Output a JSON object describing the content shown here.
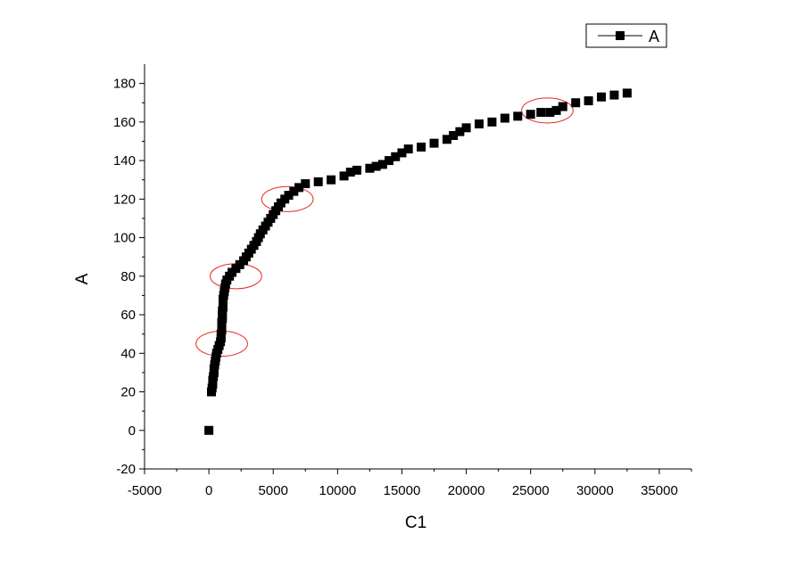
{
  "chart_data": {
    "type": "scatter",
    "title": "",
    "xlabel": "C1",
    "ylabel": "A",
    "xlim": [
      -5000,
      37500
    ],
    "ylim": [
      -20,
      190
    ],
    "xticks": [
      -5000,
      0,
      5000,
      10000,
      15000,
      20000,
      25000,
      30000,
      35000
    ],
    "yticks": [
      -20,
      0,
      20,
      40,
      60,
      80,
      100,
      120,
      140,
      160,
      180
    ],
    "grid": false,
    "legend": {
      "position": "top-right",
      "entries": [
        "A"
      ]
    },
    "marker_color": "#000000",
    "annotation_color": "#e8281e",
    "series": [
      {
        "name": "A",
        "points": [
          [
            0,
            0
          ],
          [
            200,
            20
          ],
          [
            250,
            22
          ],
          [
            300,
            24
          ],
          [
            300,
            26
          ],
          [
            350,
            28
          ],
          [
            400,
            30
          ],
          [
            400,
            32
          ],
          [
            450,
            34
          ],
          [
            500,
            36
          ],
          [
            550,
            38
          ],
          [
            600,
            40
          ],
          [
            700,
            42
          ],
          [
            800,
            44
          ],
          [
            900,
            46
          ],
          [
            950,
            48
          ],
          [
            950,
            50
          ],
          [
            1000,
            52
          ],
          [
            1000,
            54
          ],
          [
            1000,
            56
          ],
          [
            1050,
            58
          ],
          [
            1050,
            60
          ],
          [
            1050,
            62
          ],
          [
            1100,
            64
          ],
          [
            1100,
            66
          ],
          [
            1100,
            68
          ],
          [
            1150,
            70
          ],
          [
            1200,
            72
          ],
          [
            1250,
            74
          ],
          [
            1300,
            76
          ],
          [
            1400,
            78
          ],
          [
            1600,
            80
          ],
          [
            1800,
            82
          ],
          [
            2100,
            84
          ],
          [
            2400,
            86
          ],
          [
            2700,
            88
          ],
          [
            2900,
            90
          ],
          [
            3100,
            92
          ],
          [
            3300,
            94
          ],
          [
            3500,
            96
          ],
          [
            3700,
            98
          ],
          [
            3850,
            100
          ],
          [
            4000,
            102
          ],
          [
            4200,
            104
          ],
          [
            4400,
            106
          ],
          [
            4600,
            108
          ],
          [
            4800,
            110
          ],
          [
            5000,
            112
          ],
          [
            5200,
            114
          ],
          [
            5400,
            116
          ],
          [
            5600,
            118
          ],
          [
            5900,
            120
          ],
          [
            6200,
            122
          ],
          [
            6600,
            124
          ],
          [
            7000,
            126
          ],
          [
            7500,
            128
          ],
          [
            8500,
            129
          ],
          [
            9500,
            130
          ],
          [
            10500,
            132
          ],
          [
            11000,
            134
          ],
          [
            11500,
            135
          ],
          [
            12500,
            136
          ],
          [
            13000,
            137
          ],
          [
            13500,
            138
          ],
          [
            14000,
            140
          ],
          [
            14500,
            142
          ],
          [
            15000,
            144
          ],
          [
            15500,
            146
          ],
          [
            16500,
            147
          ],
          [
            17500,
            149
          ],
          [
            18500,
            151
          ],
          [
            19000,
            153
          ],
          [
            19500,
            155
          ],
          [
            20000,
            157
          ],
          [
            21000,
            159
          ],
          [
            22000,
            160
          ],
          [
            23000,
            162
          ],
          [
            24000,
            163
          ],
          [
            25000,
            164
          ],
          [
            25800,
            165
          ],
          [
            26500,
            165
          ],
          [
            27000,
            166
          ],
          [
            27500,
            168
          ],
          [
            28500,
            170
          ],
          [
            29500,
            171
          ],
          [
            30500,
            173
          ],
          [
            31500,
            174
          ],
          [
            32500,
            175
          ]
        ]
      }
    ],
    "annotations": [
      {
        "type": "ellipse",
        "cx": 1000,
        "cy": 45,
        "rx": 2000,
        "ry": 6.5
      },
      {
        "type": "ellipse",
        "cx": 2100,
        "cy": 80,
        "rx": 2000,
        "ry": 6.5
      },
      {
        "type": "ellipse",
        "cx": 6100,
        "cy": 120,
        "rx": 2000,
        "ry": 6.5
      },
      {
        "type": "ellipse",
        "cx": 26300,
        "cy": 166,
        "rx": 2000,
        "ry": 6.5
      }
    ]
  }
}
